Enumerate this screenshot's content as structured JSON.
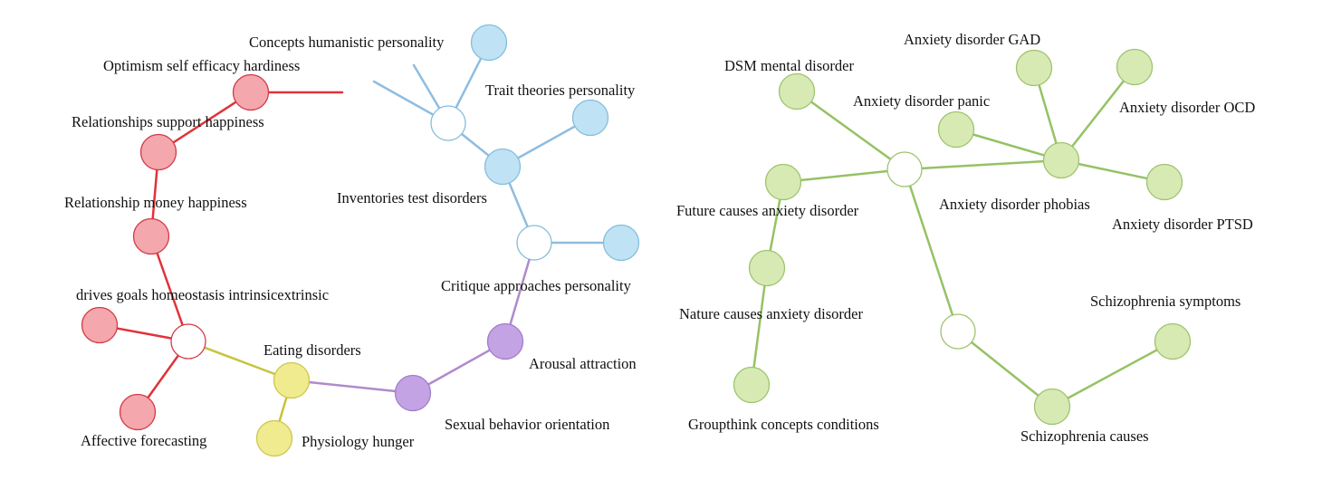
{
  "colors": {
    "red_edge": "#e0323a",
    "red_fill": "#f4a7ad",
    "red_stroke": "#d23a45",
    "blue_edge": "#8fbde0",
    "blue_fill": "#bfe3f4",
    "blue_stroke": "#86bddd",
    "yellow_edge": "#c8c23e",
    "yellow_fill": "#f1eb90",
    "yellow_stroke": "#cdc74a",
    "purple_edge": "#b08acc",
    "purple_fill": "#c3a3e3",
    "purple_stroke": "#a07ecc",
    "green_edge": "#95c264",
    "green_fill": "#d8eab4",
    "green_stroke": "#9ec46e",
    "hub_fill": "#ffffff"
  },
  "labels": {
    "concepts_humanistic": "Concepts humanistic personality",
    "optimism": "Optimism self efficacy hardiness",
    "trait_theories": "Trait theories personality",
    "relationships_support": "Relationships support happiness",
    "inventories": "Inventories test disorders",
    "relationship_money": "Relationship money happiness",
    "critique": "Critique approaches personality",
    "drives_goals": "drives goals homeostasis intrinsicextrinsic",
    "eating_disorders": "Eating disorders",
    "arousal": "Arousal attraction",
    "sexual_behavior": "Sexual behavior orientation",
    "affective": "Affective forecasting",
    "physiology": "Physiology hunger",
    "dsm": "DSM mental disorder",
    "gad": "Anxiety disorder GAD",
    "panic": "Anxiety disorder panic",
    "ocd": "Anxiety disorder OCD",
    "future_causes": "Future causes anxiety disorder",
    "phobias": "Anxiety disorder phobias",
    "ptsd": "Anxiety disorder PTSD",
    "nature_causes": "Nature causes anxiety disorder",
    "schizo_symptoms": "Schizophrenia symptoms",
    "groupthink": "Groupthink concepts conditions",
    "schizo_causes": "Schizophrenia causes"
  }
}
